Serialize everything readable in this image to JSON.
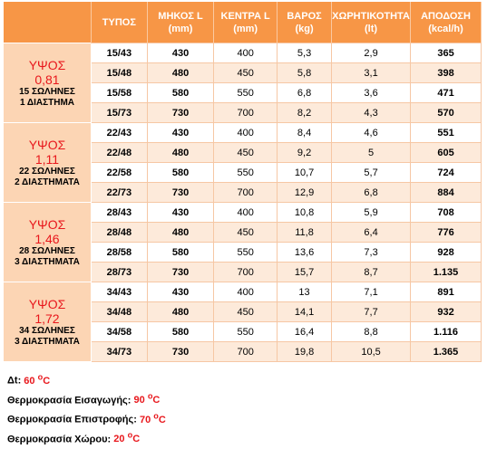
{
  "header": {
    "columns": [
      "ΤΥΠΟΣ",
      [
        "ΜΗΚΟΣ L",
        "(mm)"
      ],
      [
        "ΚΕΝΤΡΑ L",
        "(mm)"
      ],
      [
        "ΒΑΡΟΣ",
        "(kg)"
      ],
      [
        "ΧΩΡΗΤΙΚΟΤΗΤΑ",
        "(lt)"
      ],
      [
        "ΑΠΟΔΟΣΗ",
        "(kcal/h)"
      ]
    ]
  },
  "groups": [
    {
      "title": "ΥΨΟΣ",
      "height": "0,81",
      "tubes": "15 ΣΩΛΗΝΕΣ",
      "gaps": "1 ΔΙΑΣΤΗΜΑ",
      "rows": [
        [
          "15/43",
          "430",
          "400",
          "5,3",
          "2,9",
          "365"
        ],
        [
          "15/48",
          "480",
          "450",
          "5,8",
          "3,1",
          "398"
        ],
        [
          "15/58",
          "580",
          "550",
          "6,8",
          "3,6",
          "471"
        ],
        [
          "15/73",
          "730",
          "700",
          "8,2",
          "4,3",
          "570"
        ]
      ]
    },
    {
      "title": "ΥΨΟΣ",
      "height": "1,11",
      "tubes": "22 ΣΩΛΗΝΕΣ",
      "gaps": "2 ΔΙΑΣΤΗΜΑΤΑ",
      "rows": [
        [
          "22/43",
          "430",
          "400",
          "8,4",
          "4,6",
          "551"
        ],
        [
          "22/48",
          "480",
          "450",
          "9,2",
          "5",
          "605"
        ],
        [
          "22/58",
          "580",
          "550",
          "10,7",
          "5,7",
          "724"
        ],
        [
          "22/73",
          "730",
          "700",
          "12,9",
          "6,8",
          "884"
        ]
      ]
    },
    {
      "title": "ΥΨΟΣ",
      "height": "1,46",
      "tubes": "28 ΣΩΛΗΝΕΣ",
      "gaps": "3 ΔΙΑΣΤΗΜΑΤΑ",
      "rows": [
        [
          "28/43",
          "430",
          "400",
          "10,8",
          "5,9",
          "708"
        ],
        [
          "28/48",
          "480",
          "450",
          "11,8",
          "6,4",
          "776"
        ],
        [
          "28/58",
          "580",
          "550",
          "13,6",
          "7,3",
          "928"
        ],
        [
          "28/73",
          "730",
          "700",
          "15,7",
          "8,7",
          "1.135"
        ]
      ]
    },
    {
      "title": "ΥΨΟΣ",
      "height": "1,72",
      "tubes": "34 ΣΩΛΗΝΕΣ",
      "gaps": "3 ΔΙΑΣΤΗΜΑΤΑ",
      "rows": [
        [
          "34/43",
          "430",
          "400",
          "13",
          "7,1",
          "891"
        ],
        [
          "34/48",
          "480",
          "450",
          "14,1",
          "7,7",
          "932"
        ],
        [
          "34/58",
          "580",
          "550",
          "16,4",
          "8,8",
          "1.116"
        ],
        [
          "34/73",
          "730",
          "700",
          "19,8",
          "10,5",
          "1.365"
        ]
      ]
    }
  ],
  "notes": [
    {
      "label": "Δt:",
      "value": "60",
      "unit": "C"
    },
    {
      "label": "Θερμοκρασία Εισαγωγής:",
      "value": "90",
      "unit": "C"
    },
    {
      "label": "Θερμοκρασία Επιστροφής:",
      "value": "70",
      "unit": "C"
    },
    {
      "label": "Θερμοκρασία Χώρου:",
      "value": "20",
      "unit": "C"
    }
  ]
}
